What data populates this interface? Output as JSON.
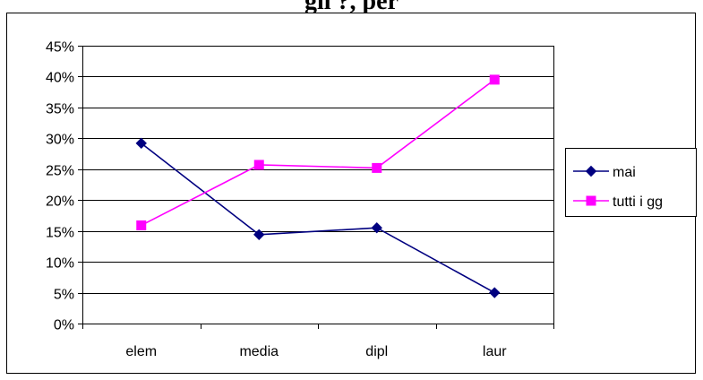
{
  "chart_data": {
    "type": "line",
    "title": "gli ?, per",
    "categories": [
      "elem",
      "media",
      "dipl",
      "laur"
    ],
    "y_tick_labels": [
      "0%",
      "5%",
      "10%",
      "15%",
      "20%",
      "25%",
      "30%",
      "35%",
      "40%",
      "45%"
    ],
    "ylim": [
      0,
      45
    ],
    "grid": true,
    "legend_position": "right",
    "series": [
      {
        "name": "mai",
        "values": [
          29.2,
          14.4,
          15.5,
          5.0
        ],
        "color": "#000080",
        "marker": "diamond"
      },
      {
        "name": "tutti i gg",
        "values": [
          15.9,
          25.7,
          25.2,
          39.5
        ],
        "color": "#FF00FF",
        "marker": "square"
      }
    ]
  }
}
